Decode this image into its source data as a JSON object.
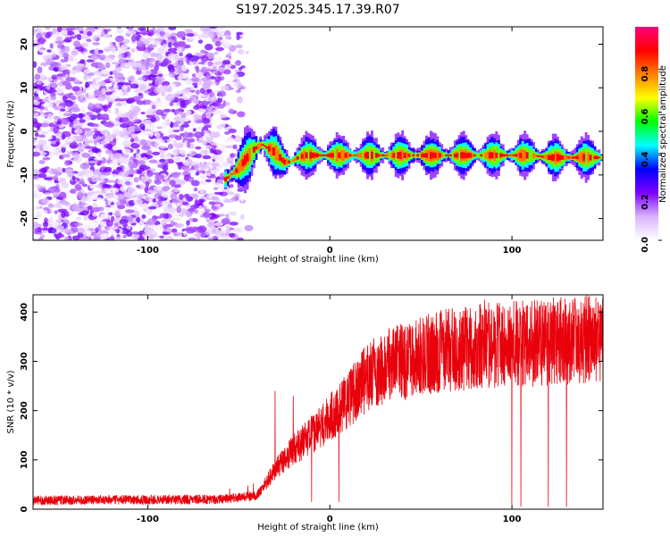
{
  "chart_data": [
    {
      "type": "heatmap",
      "title": "S197.2025.345.17.39.R07",
      "xlabel": "Height of straight line (km)",
      "ylabel": "Frequency (Hz)",
      "xlim": [
        -163,
        150
      ],
      "ylim": [
        -25,
        24
      ],
      "xticks": [
        -100,
        0,
        100
      ],
      "xtick_labels": [
        "-100",
        "0",
        "100"
      ],
      "yticks": [
        20,
        10,
        0,
        -10,
        -20
      ],
      "ytick_labels": [
        "20",
        "10",
        "0",
        "-10",
        "-20"
      ],
      "colorbar": {
        "label": "Normalized spectral amplitude",
        "range": [
          0,
          1
        ],
        "ticks": [
          0.0,
          0.2,
          0.4,
          0.6,
          0.8
        ],
        "tick_labels": [
          "0.0",
          "0.2",
          "0.4",
          "0.6",
          "0.8"
        ],
        "colors": [
          "#ffffff",
          "#d9b3ff",
          "#7f00ff",
          "#0000ff",
          "#00ffff",
          "#00ff00",
          "#ffff00",
          "#ff7f00",
          "#ff0000",
          "#ff0080"
        ]
      },
      "noise_region": {
        "x_start": -163,
        "x_end": -52,
        "amplitude": 0.25
      },
      "ridge": {
        "x": [
          -58,
          -52,
          -46,
          -42,
          -38,
          -34,
          -30,
          -26,
          -22,
          -18,
          -14,
          -10,
          0,
          20,
          40,
          60,
          80,
          100,
          110,
          120,
          150
        ],
        "freq_hz": [
          -11,
          -9,
          -6,
          -4,
          -3,
          -4,
          -5,
          -7,
          -7,
          -6,
          -5.5,
          -5.5,
          -5.5,
          -5.5,
          -5.5,
          -5.5,
          -5.5,
          -5.5,
          -5.5,
          -6,
          -6
        ]
      }
    },
    {
      "type": "line",
      "xlabel": "Height of straight line (km)",
      "ylabel": "SNR (10 * v/v)",
      "xlim": [
        -163,
        150
      ],
      "ylim": [
        0,
        435
      ],
      "xticks": [
        -100,
        0,
        100
      ],
      "xtick_labels": [
        "-100",
        "0",
        "100"
      ],
      "yticks": [
        0,
        100,
        200,
        300,
        400
      ],
      "ytick_labels": [
        "0",
        "100",
        "200",
        "300",
        "400"
      ],
      "series": [
        {
          "name": "SNR",
          "color": "#e8000b",
          "envelope_x": [
            -163,
            -60,
            -40,
            -30,
            -20,
            -10,
            0,
            10,
            20,
            30,
            40,
            50,
            60,
            80,
            100,
            120,
            150
          ],
          "envelope_y": [
            18,
            20,
            28,
            80,
            120,
            150,
            185,
            220,
            265,
            290,
            300,
            310,
            320,
            330,
            335,
            340,
            345
          ],
          "spikes": [
            [
              -30,
              240
            ],
            [
              -20,
              230
            ],
            [
              -10,
              15
            ],
            [
              5,
              15
            ],
            [
              85,
              425
            ],
            [
              100,
              10
            ],
            [
              105,
              5
            ],
            [
              120,
              5
            ],
            [
              130,
              5
            ],
            [
              142,
              430
            ],
            [
              144,
              380
            ],
            [
              -42,
              52
            ],
            [
              -45,
              48
            ],
            [
              -55,
              42
            ]
          ]
        }
      ]
    }
  ]
}
